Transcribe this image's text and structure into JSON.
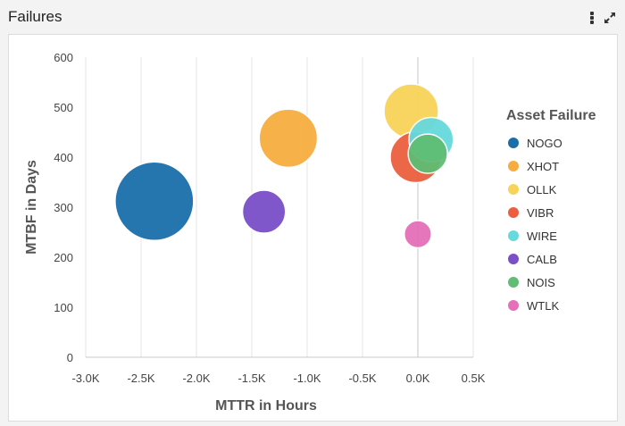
{
  "window": {
    "title": "Failures"
  },
  "chart_data": {
    "type": "scatter",
    "subtype": "bubble",
    "title": "Failures",
    "xlabel": "MTTR in Hours",
    "ylabel": "MTBF in Days",
    "xlim": [
      -3000,
      500
    ],
    "ylim": [
      0,
      600
    ],
    "x_ticks": [
      -3000,
      -2500,
      -2000,
      -1500,
      -1000,
      -500,
      0,
      500
    ],
    "x_tick_labels": [
      "-3.0K",
      "-2.5K",
      "-2.0K",
      "-1.5K",
      "-1.0K",
      "-0.5K",
      "0.0K",
      "0.5K"
    ],
    "y_ticks": [
      0,
      100,
      200,
      300,
      400,
      500,
      600
    ],
    "y_tick_labels": [
      "0",
      "100",
      "200",
      "300",
      "400",
      "500",
      "600"
    ],
    "legend_title": "Asset Failure",
    "legend_position": "right",
    "series": [
      {
        "name": "NOGO",
        "x": -2380,
        "y": 312,
        "size": 100,
        "color": "#1a6fab"
      },
      {
        "name": "XHOT",
        "x": -1170,
        "y": 438,
        "size": 55,
        "color": "#f6ad3f"
      },
      {
        "name": "OLLK",
        "x": -60,
        "y": 492,
        "size": 48,
        "color": "#f8d359"
      },
      {
        "name": "VIBR",
        "x": -20,
        "y": 400,
        "size": 42,
        "color": "#ec5e3f"
      },
      {
        "name": "WIRE",
        "x": 120,
        "y": 435,
        "size": 32,
        "color": "#66d9dc"
      },
      {
        "name": "CALB",
        "x": -1390,
        "y": 291,
        "size": 30,
        "color": "#7a4fc8"
      },
      {
        "name": "NOIS",
        "x": 90,
        "y": 407,
        "size": 25,
        "color": "#5fbd74"
      },
      {
        "name": "WTLK",
        "x": 0,
        "y": 246,
        "size": 12,
        "color": "#e56fb8"
      }
    ]
  }
}
